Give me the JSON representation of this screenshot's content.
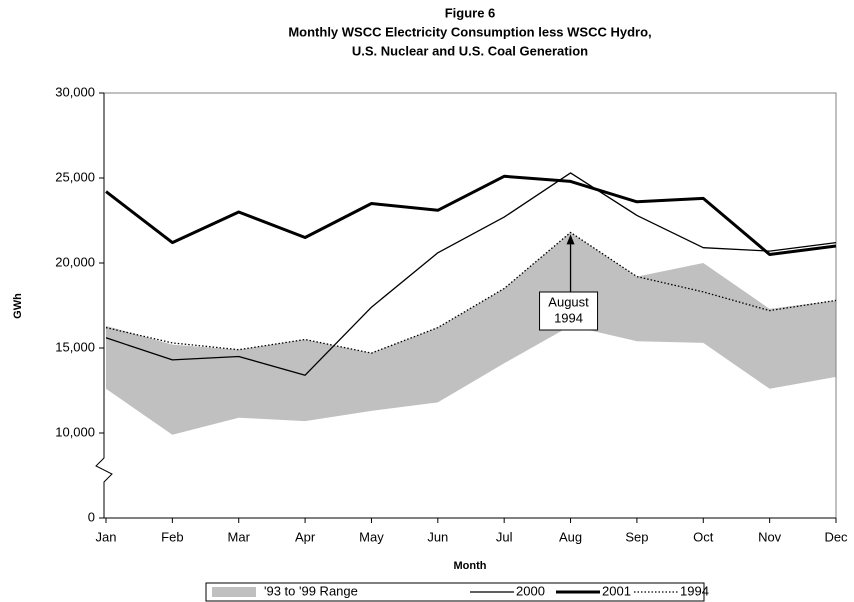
{
  "chart_data": {
    "type": "line",
    "title": [
      "Figure 6",
      "Monthly WSCC Electricity Consumption less WSCC Hydro,",
      "U.S. Nuclear and U.S. Coal Generation"
    ],
    "x_label": "Month",
    "y_label": "GWh",
    "categories": [
      "Jan",
      "Feb",
      "Mar",
      "Apr",
      "May",
      "Jun",
      "Jul",
      "Aug",
      "Sep",
      "Oct",
      "Nov",
      "Dec"
    ],
    "ylim": [
      0,
      30000
    ],
    "yticks": [
      0,
      {
        "value": 10000,
        "label": "10,000"
      },
      {
        "value": 15000,
        "label": "15,000"
      },
      {
        "value": 20000,
        "label": "20,000"
      },
      {
        "value": 25000,
        "label": "25,000"
      },
      {
        "value": 30000,
        "label": "30,000"
      }
    ],
    "axis_break": true,
    "series": [
      {
        "name": "'93 to '99 Range",
        "kind": "range",
        "color": "#c0c0c0",
        "values": [
          16300,
          15200,
          14900,
          15500,
          14700,
          16200,
          18500,
          21800,
          19200,
          20000,
          17300,
          17800
        ],
        "low": [
          12600,
          9800,
          10900,
          10700,
          11300,
          11800,
          14100,
          16300,
          15400,
          15300,
          12600,
          13300
        ]
      },
      {
        "name": "2000",
        "color": "#000000",
        "width": 1.3,
        "values": [
          15600,
          14300,
          14500,
          13400,
          17400,
          20600,
          22700,
          25300,
          22800,
          20900,
          20700,
          21200
        ]
      },
      {
        "name": "2001",
        "color": "#000000",
        "width": 3,
        "values": [
          24200,
          21200,
          23000,
          21500,
          23500,
          23100,
          25100,
          24800,
          23600,
          23800,
          20500,
          21000
        ]
      },
      {
        "name": "1994",
        "color": "#000000",
        "width": 1.3,
        "dash": true,
        "values": [
          16200,
          15300,
          14900,
          15500,
          14700,
          16200,
          18500,
          21800,
          19200,
          18300,
          17200,
          17800
        ]
      }
    ],
    "annotation": [
      "August",
      "1994"
    ]
  }
}
